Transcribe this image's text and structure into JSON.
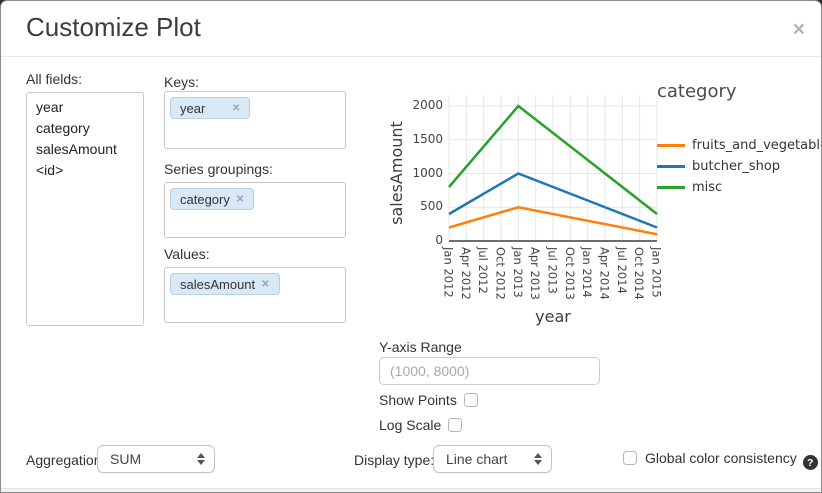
{
  "dialog": {
    "title": "Customize Plot",
    "close_glyph": "×"
  },
  "fields_panel": {
    "label": "All fields:",
    "items": [
      "year",
      "category",
      "salesAmount",
      "<id>"
    ]
  },
  "mapping": {
    "keys": {
      "label": "Keys:",
      "pills": [
        "year"
      ]
    },
    "series_groupings": {
      "label": "Series groupings:",
      "pills": [
        "category"
      ]
    },
    "values": {
      "label": "Values:",
      "pills": [
        "salesAmount"
      ]
    }
  },
  "options": {
    "y_axis_range": {
      "label": "Y-axis Range",
      "value": "",
      "placeholder": "(1000, 8000)"
    },
    "show_points": {
      "label": "Show Points",
      "checked": false
    },
    "log_scale": {
      "label": "Log Scale",
      "checked": false
    },
    "aggregation": {
      "label": "Aggregation:",
      "value": "SUM"
    },
    "display_type": {
      "label": "Display type:",
      "value": "Line chart"
    },
    "global_color": {
      "label": "Global color consistency",
      "checked": false,
      "help_glyph": "?"
    }
  },
  "chart_data": {
    "type": "line",
    "title": "",
    "xlabel": "year",
    "ylabel": "salesAmount",
    "legend_title": "category",
    "legend_position": "right",
    "grid": true,
    "x_ticks": [
      "Jan 2012",
      "Apr 2012",
      "Jul 2012",
      "Oct 2012",
      "Jan 2013",
      "Apr 2013",
      "Jul 2013",
      "Oct 2013",
      "Jan 2014",
      "Apr 2014",
      "Jul 2014",
      "Oct 2014",
      "Jan 2015"
    ],
    "y_ticks": [
      0,
      500,
      1000,
      1500,
      2000
    ],
    "ylim": [
      0,
      2000
    ],
    "series": [
      {
        "name": "fruits_and_vegetables",
        "color": "#ff7f0e",
        "x": [
          "Jan 2012",
          "Jan 2013",
          "Jan 2015"
        ],
        "values": [
          200,
          500,
          100
        ]
      },
      {
        "name": "butcher_shop",
        "color": "#1f77b4",
        "x": [
          "Jan 2012",
          "Jan 2013",
          "Jan 2015"
        ],
        "values": [
          400,
          1000,
          200
        ]
      },
      {
        "name": "misc",
        "color": "#2ca02c",
        "x": [
          "Jan 2012",
          "Jan 2013",
          "Jan 2015"
        ],
        "values": [
          800,
          2000,
          400
        ]
      }
    ]
  }
}
